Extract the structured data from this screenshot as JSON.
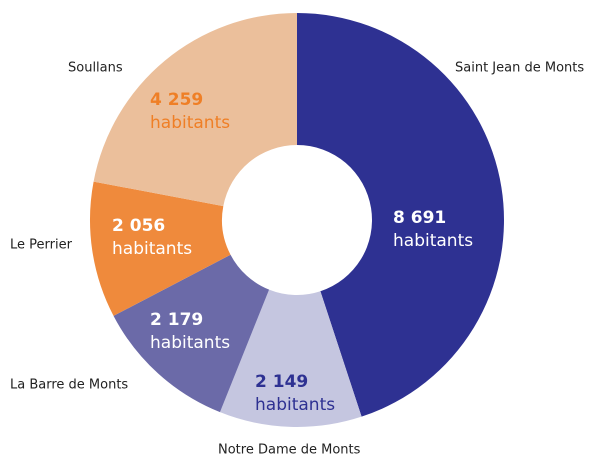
{
  "chart_data": {
    "type": "donut",
    "categories": [
      "Saint Jean de Monts",
      "Notre Dame de Monts",
      "La Barre de Monts",
      "Le Perrier",
      "Soullans"
    ],
    "values": [
      8691,
      2149,
      2179,
      2056,
      4259
    ],
    "value_labels": [
      "8 691",
      "2 149",
      "2 179",
      "2 056",
      "4 259"
    ],
    "value_unit": "habitants",
    "colors": [
      "#2e3192",
      "#c5c6e0",
      "#6b6aa8",
      "#ef8a3c",
      "#ebbf9b"
    ],
    "label_colors": [
      "#ffffff",
      "#2e3192",
      "#ffffff",
      "#ffffff",
      "#ef7f26"
    ]
  }
}
